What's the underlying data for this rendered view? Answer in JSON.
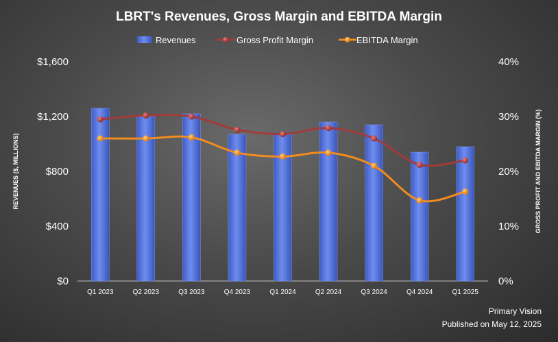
{
  "chart_data": {
    "type": "bar",
    "title": "LBRT's Revenues, Gross Margin and EBITDA Margin",
    "categories": [
      "Q1 2023",
      "Q2 2023",
      "Q3 2023",
      "Q4 2023",
      "Q1 2024",
      "Q2 2024",
      "Q3 2024",
      "Q4 2024",
      "Q1 2025"
    ],
    "series": [
      {
        "name": "Revenues",
        "type": "bar",
        "axis": "left",
        "color": "#4e6fd6",
        "values": [
          1260,
          1200,
          1220,
          1070,
          1070,
          1160,
          1140,
          940,
          980
        ]
      },
      {
        "name": "Gross Profit Margin",
        "type": "line",
        "axis": "right",
        "color": "#a23b3b",
        "values": [
          29.5,
          30.2,
          30.0,
          27.6,
          26.8,
          27.9,
          26.0,
          21.2,
          22.0
        ]
      },
      {
        "name": "EBITDA Margin",
        "type": "line",
        "axis": "right",
        "color": "#f28c1e",
        "values": [
          26.0,
          26.0,
          26.2,
          23.4,
          22.7,
          23.4,
          21.0,
          14.7,
          16.3
        ]
      }
    ],
    "ylabel": "REVENUES ($, MILLIONS)",
    "y2label": "GROSS PROFIT AND EBITDA MARGIN (%)",
    "ylim": [
      0,
      1600
    ],
    "y2lim": [
      0,
      40
    ],
    "yticks": [
      "$0",
      "$400",
      "$800",
      "$1,200",
      "$1,600"
    ],
    "y2ticks": [
      "0%",
      "10%",
      "20%",
      "30%",
      "40%"
    ],
    "legend_position": "top"
  },
  "footer": {
    "source": "Primary Vision",
    "published": "Published on May 12, 2025"
  }
}
